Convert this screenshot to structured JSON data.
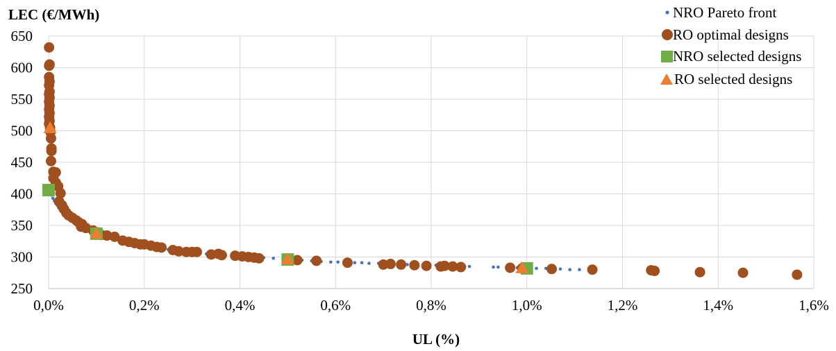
{
  "chart_data": {
    "type": "scatter",
    "title": "",
    "xlabel": "UL (%)",
    "ylabel": "LEC (€/MWh)",
    "xlim": [
      0,
      1.6
    ],
    "ylim": [
      250,
      650
    ],
    "x_ticks": [
      0,
      0.2,
      0.4,
      0.6,
      0.8,
      1.0,
      1.2,
      1.4,
      1.6
    ],
    "x_tick_labels": [
      "0,0%",
      "0,2%",
      "0,4%",
      "0,6%",
      "0,8%",
      "1,0%",
      "1,2%",
      "1,4%",
      "1,6%"
    ],
    "y_ticks": [
      250,
      300,
      350,
      400,
      450,
      500,
      550,
      600,
      650
    ],
    "y_tick_labels": [
      "250",
      "300",
      "350",
      "400",
      "450",
      "500",
      "550",
      "600",
      "650"
    ],
    "grid": true,
    "legend_position": "top-right",
    "series": [
      {
        "name": "NRO Pareto front",
        "marker": "small-circle",
        "color": "#4472C4",
        "points": [
          [
            0.003,
            405
          ],
          [
            0.006,
            398
          ],
          [
            0.009,
            393
          ],
          [
            0.012,
            389
          ],
          [
            0.015,
            385
          ],
          [
            0.018,
            382
          ],
          [
            0.021,
            378
          ],
          [
            0.024,
            375
          ],
          [
            0.027,
            372
          ],
          [
            0.03,
            369
          ],
          [
            0.035,
            366
          ],
          [
            0.04,
            363
          ],
          [
            0.045,
            360
          ],
          [
            0.05,
            357
          ],
          [
            0.055,
            355
          ],
          [
            0.06,
            352
          ],
          [
            0.065,
            349
          ],
          [
            0.07,
            347
          ],
          [
            0.075,
            345
          ],
          [
            0.08,
            343
          ],
          [
            0.085,
            341
          ],
          [
            0.09,
            339
          ],
          [
            0.11,
            335
          ],
          [
            0.12,
            333
          ],
          [
            0.13,
            331
          ],
          [
            0.14,
            329
          ],
          [
            0.15,
            327
          ],
          [
            0.17,
            324
          ],
          [
            0.19,
            321
          ],
          [
            0.21,
            318
          ],
          [
            0.23,
            315
          ],
          [
            0.25,
            312
          ],
          [
            0.27,
            310
          ],
          [
            0.29,
            308
          ],
          [
            0.31,
            306
          ],
          [
            0.33,
            305
          ],
          [
            0.35,
            304
          ],
          [
            0.37,
            303
          ],
          [
            0.39,
            302
          ],
          [
            0.41,
            301
          ],
          [
            0.43,
            300
          ],
          [
            0.45,
            299
          ],
          [
            0.47,
            298
          ],
          [
            0.49,
            297
          ],
          [
            0.51,
            296
          ],
          [
            0.53,
            295
          ],
          [
            0.55,
            294
          ],
          [
            0.57,
            293
          ],
          [
            0.59,
            292
          ],
          [
            0.605,
            292
          ],
          [
            0.64,
            291
          ],
          [
            0.655,
            291
          ],
          [
            0.67,
            290
          ],
          [
            0.69,
            290
          ],
          [
            0.71,
            289
          ],
          [
            0.73,
            289
          ],
          [
            0.75,
            288
          ],
          [
            0.77,
            288
          ],
          [
            0.79,
            287
          ],
          [
            0.81,
            287
          ],
          [
            0.83,
            286
          ],
          [
            0.85,
            286
          ],
          [
            0.87,
            285
          ],
          [
            0.88,
            285
          ],
          [
            0.93,
            284
          ],
          [
            0.94,
            284
          ],
          [
            0.96,
            283
          ],
          [
            0.98,
            283
          ],
          [
            1.02,
            282
          ],
          [
            1.04,
            282
          ],
          [
            1.07,
            281
          ],
          [
            1.09,
            280
          ],
          [
            1.11,
            280
          ]
        ]
      },
      {
        "name": "RO optimal designs",
        "marker": "circle",
        "color": "#A0501E",
        "points": [
          [
            0.001,
            632
          ],
          [
            0.002,
            605
          ],
          [
            0.001,
            603
          ],
          [
            0.001,
            585
          ],
          [
            0.002,
            578
          ],
          [
            0.001,
            572
          ],
          [
            0.002,
            562
          ],
          [
            0.001,
            558
          ],
          [
            0.002,
            552
          ],
          [
            0.001,
            546
          ],
          [
            0.002,
            540
          ],
          [
            0.001,
            534
          ],
          [
            0.002,
            528
          ],
          [
            0.001,
            522
          ],
          [
            0.002,
            516
          ],
          [
            0.001,
            511
          ],
          [
            0.003,
            505
          ],
          [
            0.004,
            498
          ],
          [
            0.005,
            488
          ],
          [
            0.006,
            472
          ],
          [
            0.006,
            468
          ],
          [
            0.005,
            452
          ],
          [
            0.01,
            435
          ],
          [
            0.015,
            434
          ],
          [
            0.01,
            425
          ],
          [
            0.015,
            418
          ],
          [
            0.02,
            412
          ],
          [
            0.025,
            401
          ],
          [
            0.022,
            388
          ],
          [
            0.028,
            382
          ],
          [
            0.032,
            376
          ],
          [
            0.037,
            370
          ],
          [
            0.042,
            366
          ],
          [
            0.05,
            362
          ],
          [
            0.058,
            358
          ],
          [
            0.063,
            355
          ],
          [
            0.07,
            352
          ],
          [
            0.068,
            348
          ],
          [
            0.078,
            346
          ],
          [
            0.093,
            342
          ],
          [
            0.103,
            339
          ],
          [
            0.11,
            335
          ],
          [
            0.122,
            334
          ],
          [
            0.138,
            332
          ],
          [
            0.155,
            326
          ],
          [
            0.168,
            324
          ],
          [
            0.18,
            322
          ],
          [
            0.192,
            320
          ],
          [
            0.2,
            320
          ],
          [
            0.214,
            318
          ],
          [
            0.226,
            316
          ],
          [
            0.236,
            315
          ],
          [
            0.26,
            311
          ],
          [
            0.272,
            309
          ],
          [
            0.288,
            308
          ],
          [
            0.3,
            308
          ],
          [
            0.31,
            308
          ],
          [
            0.34,
            304
          ],
          [
            0.355,
            305
          ],
          [
            0.362,
            303
          ],
          [
            0.39,
            302
          ],
          [
            0.405,
            301
          ],
          [
            0.418,
            300
          ],
          [
            0.43,
            299
          ],
          [
            0.44,
            298
          ],
          [
            0.52,
            295
          ],
          [
            0.56,
            294
          ],
          [
            0.625,
            291
          ],
          [
            0.7,
            288
          ],
          [
            0.715,
            289
          ],
          [
            0.737,
            288
          ],
          [
            0.765,
            287
          ],
          [
            0.79,
            286
          ],
          [
            0.82,
            285
          ],
          [
            0.828,
            286
          ],
          [
            0.845,
            285
          ],
          [
            0.862,
            284
          ],
          [
            0.965,
            283
          ],
          [
            0.99,
            282
          ],
          [
            1.052,
            281
          ],
          [
            1.137,
            280
          ],
          [
            1.26,
            279
          ],
          [
            1.267,
            278
          ],
          [
            1.362,
            276
          ],
          [
            1.452,
            275
          ],
          [
            1.565,
            272
          ]
        ]
      },
      {
        "name": "NRO selected designs",
        "marker": "square",
        "color": "#70AD47",
        "points": [
          [
            0.0,
            406
          ],
          [
            0.1,
            337
          ],
          [
            0.5,
            296
          ],
          [
            1.0,
            282
          ]
        ]
      },
      {
        "name": "RO selected designs",
        "marker": "triangle",
        "color": "#ED7D31",
        "points": [
          [
            0.003,
            504
          ],
          [
            0.1,
            337
          ],
          [
            0.5,
            296
          ],
          [
            0.99,
            282
          ]
        ]
      }
    ]
  }
}
